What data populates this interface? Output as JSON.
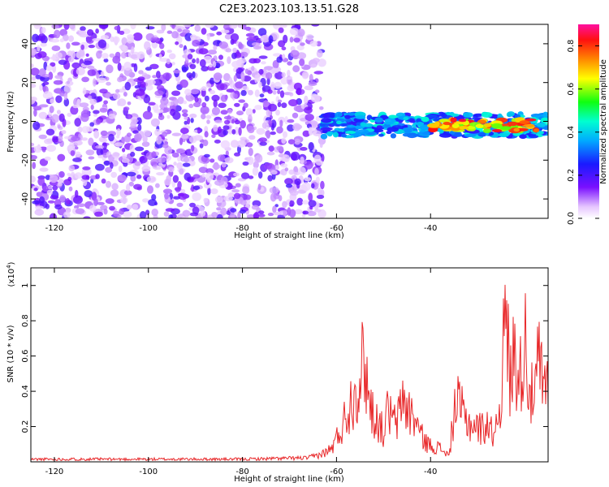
{
  "title": "C2E3.2023.103.13.51.G28",
  "colors": {
    "snr_line": "#e8282a",
    "spectrogram_base": "#6a00ff"
  },
  "chart_data": [
    {
      "type": "heatmap",
      "xlabel": "Height of straight line (km)",
      "ylabel": "Frequency (Hz)",
      "xlim": [
        -125,
        -15
      ],
      "ylim": [
        -50,
        50
      ],
      "xticks": [
        -120,
        -100,
        -80,
        -60,
        -40
      ],
      "yticks": [
        -40,
        -20,
        0,
        20,
        40
      ],
      "colorbar": {
        "label": "Normalized spectral amplitude",
        "range": [
          0,
          0.9
        ],
        "ticks": [
          0.0,
          0.2,
          0.4,
          0.6,
          0.8
        ],
        "colormap": "rainbow (violet → blue → cyan → green → yellow → orange → red → magenta)"
      },
      "regions": [
        {
          "x_range": [
            -125,
            -63
          ],
          "y_range": [
            -50,
            50
          ],
          "level": 0.15
        },
        {
          "x_range": [
            -63,
            -15
          ],
          "y_range": [
            -8,
            4
          ],
          "level": 0.5
        },
        {
          "x_range": [
            -40,
            -17
          ],
          "y_range": [
            -5,
            1
          ],
          "level": 0.85
        }
      ]
    },
    {
      "type": "line",
      "xlabel": "Height of straight line (km)",
      "ylabel": "SNR (10 * v/v)",
      "yscale_label": "(x10",
      "yscale_exp": "4",
      "yscale_close": ")",
      "xlim": [
        -125,
        -15
      ],
      "ylim": [
        0,
        1.1
      ],
      "xticks": [
        -120,
        -100,
        -80,
        -60,
        -40
      ],
      "yticks": [
        0.2,
        0.4,
        0.6,
        0.8,
        1.0
      ],
      "series": [
        {
          "x": [
            -125,
            -100,
            -80,
            -66,
            -63,
            -61,
            -59,
            -58,
            -57,
            -56,
            -55,
            -54,
            -53,
            -52,
            -51,
            -50,
            -49,
            -48,
            -47,
            -46,
            -45,
            -44,
            -43,
            -42,
            -41,
            -40,
            -39,
            -38,
            -37,
            -36,
            -35,
            -34,
            -33,
            -32,
            -31,
            -30,
            -29,
            -28,
            -27,
            -26,
            -25,
            -24,
            -23,
            -22,
            -21,
            -20,
            -19,
            -18,
            -17,
            -16,
            -15
          ],
          "y": [
            0.02,
            0.02,
            0.02,
            0.03,
            0.06,
            0.1,
            0.25,
            0.35,
            0.45,
            0.55,
            0.65,
            0.78,
            0.45,
            0.35,
            0.3,
            0.22,
            0.4,
            0.3,
            0.3,
            0.5,
            0.4,
            0.35,
            0.3,
            0.2,
            0.15,
            0.12,
            0.12,
            0.1,
            0.08,
            0.04,
            0.4,
            0.43,
            0.35,
            0.3,
            0.28,
            0.26,
            0.25,
            0.3,
            0.22,
            0.28,
            0.55,
            1.1,
            0.6,
            0.9,
            0.6,
            1.0,
            0.6,
            0.4,
            0.8,
            0.5,
            0.6
          ]
        }
      ]
    }
  ]
}
